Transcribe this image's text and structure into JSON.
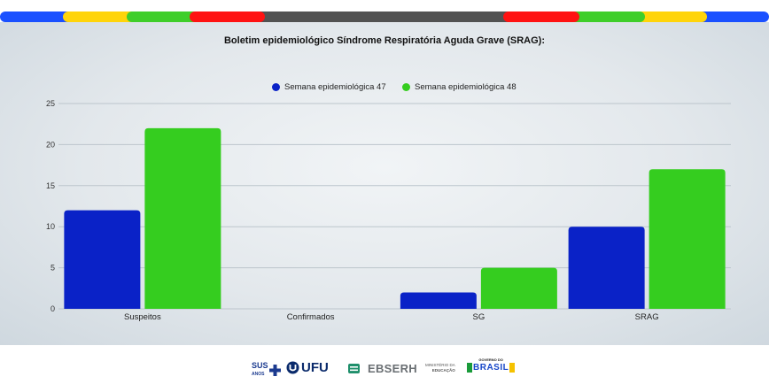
{
  "colors": {
    "series47": "#0a22c7",
    "series48": "#35cd1f",
    "stripe": [
      "#1a50ff",
      "#ffd40a",
      "#3fce2a",
      "#ff1212",
      "#525252",
      "#ff1212",
      "#3fce2a",
      "#ffd40a",
      "#1a50ff"
    ],
    "grid": "#bcc5cc"
  },
  "chart_data": {
    "type": "bar",
    "title": "Boletim epidemiológico Síndrome Respiratória Aguda Grave (SRAG):",
    "categories": [
      "Suspeitos",
      "Confirmados",
      "SG",
      "SRAG"
    ],
    "series": [
      {
        "name": "Semana epidemiológica 47",
        "values": [
          12,
          0,
          2,
          10
        ]
      },
      {
        "name": "Semana epidemiológica 48",
        "values": [
          22,
          0,
          5,
          17
        ]
      }
    ],
    "ylim": [
      0,
      25
    ],
    "yticks": [
      0,
      5,
      10,
      15,
      20,
      25
    ],
    "grid": true,
    "legend": "top-center"
  },
  "footer": {
    "sus_label": "SUS",
    "sus_sub": "ANOS",
    "ufu_label": "UFU",
    "ebserh_label": "EBSERH",
    "ministerio_label": "MINISTÉRIO DA",
    "educacao_label": "EDUCAÇÃO",
    "governo_label": "GOVERNO DO",
    "brasil_label": "BRASIL"
  }
}
